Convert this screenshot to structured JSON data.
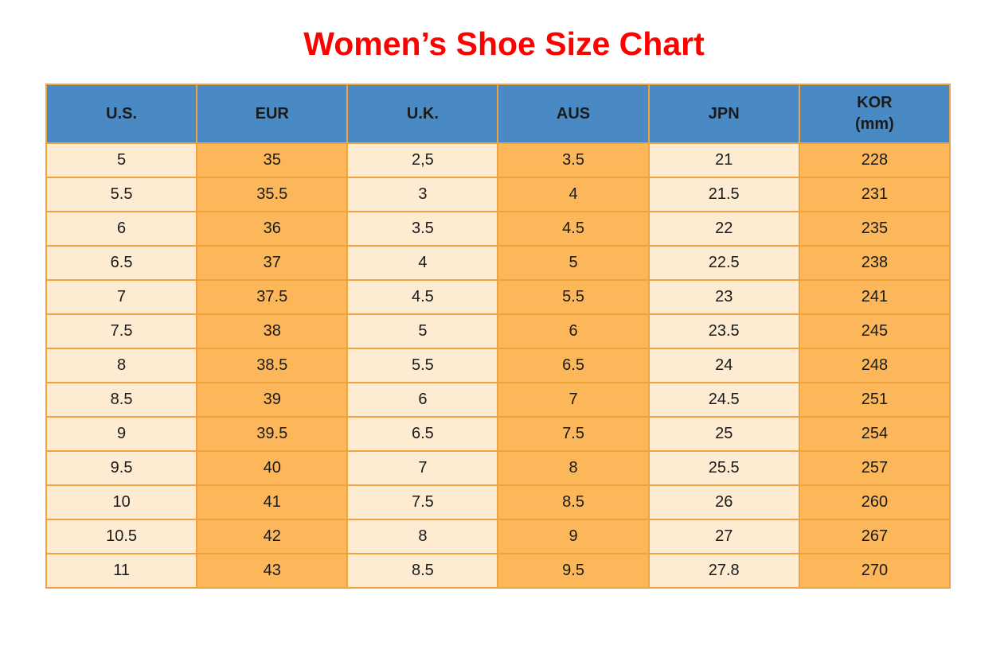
{
  "colors": {
    "title_red": "#ff0000",
    "header_bg": "#4a8ac4",
    "col_cream": "#fdebd2",
    "col_orange": "#fbb75a",
    "border_orange": "#f0a33c",
    "text_dark": "#1a1a1a"
  },
  "chart_data": {
    "type": "table",
    "title": "Women’s Shoe Size Chart",
    "columns": [
      "U.S.",
      "EUR",
      "U.K.",
      "AUS",
      "JPN",
      "KOR\n(mm)"
    ],
    "rows": [
      [
        "5",
        "35",
        "2,5",
        "3.5",
        "21",
        "228"
      ],
      [
        "5.5",
        "35.5",
        "3",
        "4",
        "21.5",
        "231"
      ],
      [
        "6",
        "36",
        "3.5",
        "4.5",
        "22",
        "235"
      ],
      [
        "6.5",
        "37",
        "4",
        "5",
        "22.5",
        "238"
      ],
      [
        "7",
        "37.5",
        "4.5",
        "5.5",
        "23",
        "241"
      ],
      [
        "7.5",
        "38",
        "5",
        "6",
        "23.5",
        "245"
      ],
      [
        "8",
        "38.5",
        "5.5",
        "6.5",
        "24",
        "248"
      ],
      [
        "8.5",
        "39",
        "6",
        "7",
        "24.5",
        "251"
      ],
      [
        "9",
        "39.5",
        "6.5",
        "7.5",
        "25",
        "254"
      ],
      [
        "9.5",
        "40",
        "7",
        "8",
        "25.5",
        "257"
      ],
      [
        "10",
        "41",
        "7.5",
        "8.5",
        "26",
        "260"
      ],
      [
        "10.5",
        "42",
        "8",
        "9",
        "27",
        "267"
      ],
      [
        "11",
        "43",
        "8.5",
        "9.5",
        "27.8",
        "270"
      ]
    ]
  }
}
